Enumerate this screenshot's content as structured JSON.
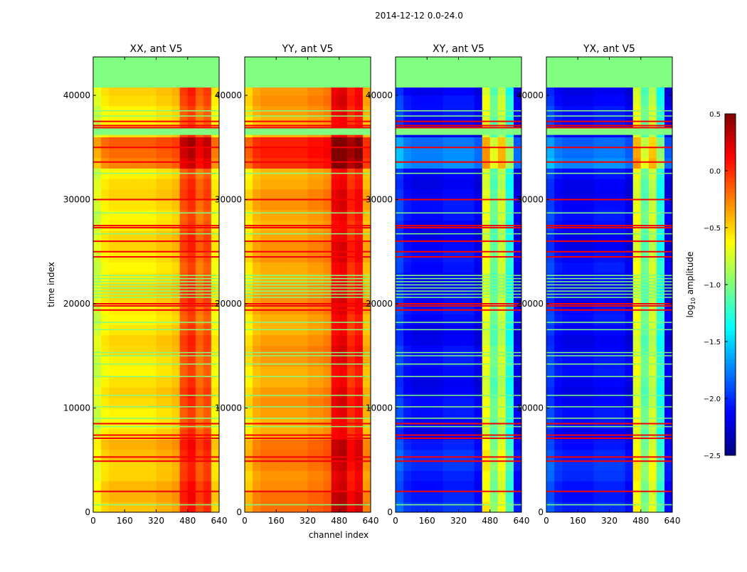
{
  "chart_data": {
    "type": "heatmap",
    "title": "2014-12-12 0.0-24.0",
    "xlabel": "channel index",
    "ylabel": "time index",
    "xlim": [
      0,
      640
    ],
    "ylim": [
      0,
      43690
    ],
    "x_ticks": [
      0,
      160,
      320,
      480,
      640
    ],
    "x_tick_labels": [
      "0",
      "160",
      "320",
      "480",
      "640"
    ],
    "y_ticks": [
      0,
      10000,
      20000,
      30000,
      40000
    ],
    "y_tick_labels": [
      "0",
      "10000",
      "20000",
      "30000",
      "40000"
    ],
    "colormap": "jet",
    "colorbar": {
      "label_prefix": "log",
      "label_sub": "10",
      "label_suffix": " amplitude",
      "range": [
        -2.5,
        0.5
      ],
      "ticks": [
        0.5,
        0.0,
        -0.5,
        -1.0,
        -1.5,
        -2.0,
        -2.5
      ],
      "tick_labels": [
        "0.5",
        "0.0",
        "−0.5",
        "−1.0",
        "−1.5",
        "−2.0",
        "−2.5"
      ]
    },
    "channel_bin_width": 40,
    "time_bin_width": 1000,
    "data_end_time": 40750,
    "flag_value": -1.0,
    "flagged_ranges": [
      [
        40750,
        43690
      ],
      [
        36200,
        36900
      ]
    ],
    "flagged_rows": [
      700,
      8200,
      9000,
      10100,
      11200,
      13000,
      14200,
      15000,
      15300,
      17500,
      18200,
      26700,
      28700,
      32500,
      38000,
      38500,
      20600,
      20900,
      21200,
      21500,
      21800,
      22100,
      22400,
      22700
    ],
    "bright_rows": [
      2000,
      4900,
      5300,
      7100,
      7400,
      8500,
      19400,
      19800,
      20000,
      24500,
      25000,
      26000,
      27300,
      27500,
      30000,
      33600,
      35000,
      36900,
      37100,
      37500
    ],
    "bright_row_value": 0.15,
    "time_band_offsets": [
      {
        "from": 33000,
        "to": 36000,
        "offset": 0.35
      },
      {
        "from": 0,
        "to": 6500,
        "offset": 0.1
      }
    ],
    "panels": [
      {
        "name": "XX",
        "title": "XX, ant V5",
        "channel_profile": [
          -0.75,
          -0.6,
          -0.55,
          -0.55,
          -0.55,
          -0.55,
          -0.55,
          -0.55,
          -0.5,
          -0.5,
          -0.45,
          -0.1,
          0.0,
          -0.2,
          -0.1,
          -0.6
        ]
      },
      {
        "name": "YY",
        "title": "YY, ant V5",
        "channel_profile": [
          -0.55,
          -0.4,
          -0.35,
          -0.35,
          -0.35,
          -0.35,
          -0.35,
          -0.35,
          -0.3,
          -0.3,
          -0.25,
          0.15,
          0.2,
          0.0,
          0.1,
          -0.4
        ]
      },
      {
        "name": "XY",
        "title": "XY, ant V5",
        "channel_profile": [
          -1.95,
          -2.1,
          -2.15,
          -2.15,
          -2.15,
          -2.15,
          -2.1,
          -2.1,
          -2.1,
          -2.1,
          -2.2,
          -0.7,
          -1.1,
          -0.8,
          -1.3,
          -2.2
        ]
      },
      {
        "name": "YX",
        "title": "YX, ant V5",
        "channel_profile": [
          -1.95,
          -2.1,
          -2.15,
          -2.15,
          -2.15,
          -2.15,
          -2.1,
          -2.1,
          -2.1,
          -2.1,
          -2.2,
          -0.7,
          -1.1,
          -0.8,
          -1.3,
          -2.2
        ]
      }
    ]
  }
}
